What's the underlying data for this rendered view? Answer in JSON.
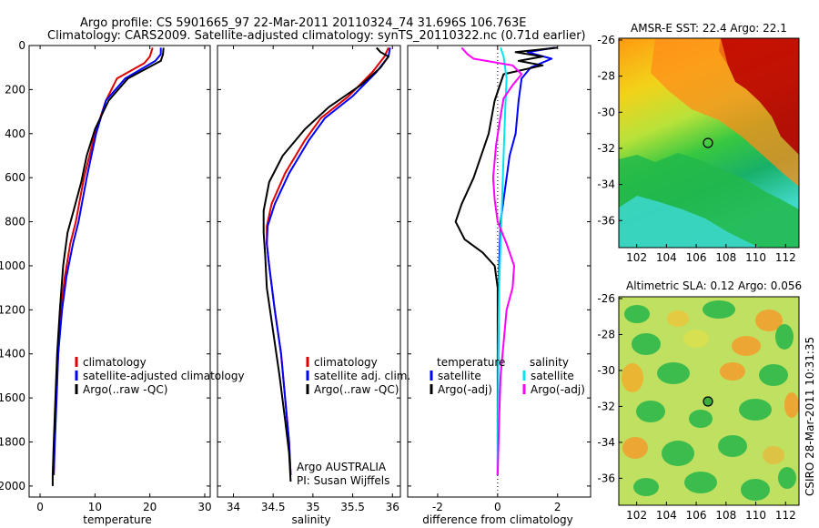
{
  "header": {
    "line1": "Argo profile: CS 5901665_97 22-Mar-2011 20110324_74 31.696S 106.763E",
    "line2": "Climatology: CARS2009. Satellite-adjusted climatology: synTS_20110322.nc (0.71d earlier)"
  },
  "side_text": "CSIRO 28-Mar-2011 10:31:35",
  "colors": {
    "climatology": "#e00000",
    "satellite": "#0000ff",
    "argo": "#000000",
    "sat_salinity": "#00e5ee",
    "argo_salinity": "#ff00ff"
  },
  "chart_data": [
    {
      "type": "line",
      "id": "temperature-profile",
      "xlabel": "temperature",
      "xlim": [
        -2,
        31
      ],
      "ylim": [
        2050,
        0
      ],
      "xticks": [
        0,
        10,
        20,
        30
      ],
      "yticks": [
        0,
        200,
        400,
        600,
        800,
        1000,
        1200,
        1400,
        1600,
        1800,
        2000
      ],
      "legend": [
        "climatology",
        "satellite-adjusted climatology",
        "Argo(..raw -QC)"
      ],
      "series": [
        {
          "name": "climatology",
          "color": "#e00000",
          "points": [
            [
              20.5,
              10
            ],
            [
              20,
              50
            ],
            [
              19,
              80
            ],
            [
              14,
              150
            ],
            [
              12,
              250
            ],
            [
              10,
              400
            ],
            [
              8,
              600
            ],
            [
              6.5,
              800
            ],
            [
              5.5,
              900
            ],
            [
              4.5,
              1050
            ],
            [
              3.8,
              1200
            ],
            [
              3.3,
              1400
            ],
            [
              2.9,
              1600
            ],
            [
              2.6,
              1800
            ],
            [
              2.5,
              1950
            ]
          ]
        },
        {
          "name": "satellite-adjusted climatology",
          "color": "#0000ff",
          "points": [
            [
              22,
              10
            ],
            [
              22,
              40
            ],
            [
              21,
              70
            ],
            [
              15.5,
              150
            ],
            [
              12,
              250
            ],
            [
              10.2,
              400
            ],
            [
              8.5,
              600
            ],
            [
              7,
              800
            ],
            [
              6,
              900
            ],
            [
              4.8,
              1050
            ],
            [
              4,
              1200
            ],
            [
              3.3,
              1400
            ],
            [
              3,
              1600
            ],
            [
              2.7,
              1800
            ],
            [
              2.5,
              1950
            ]
          ]
        },
        {
          "name": "Argo(..raw -QC)",
          "color": "#000000",
          "points": [
            [
              22.5,
              10
            ],
            [
              22.4,
              40
            ],
            [
              22,
              70
            ],
            [
              16,
              150
            ],
            [
              12.5,
              250
            ],
            [
              10,
              380
            ],
            [
              8.5,
              500
            ],
            [
              7.5,
              620
            ],
            [
              6,
              760
            ],
            [
              5,
              850
            ],
            [
              4.2,
              1000
            ],
            [
              3.6,
              1200
            ],
            [
              3.1,
              1400
            ],
            [
              2.8,
              1600
            ],
            [
              2.5,
              1800
            ],
            [
              2.3,
              1950
            ],
            [
              2.3,
              2000
            ]
          ]
        }
      ]
    },
    {
      "type": "line",
      "id": "salinity-profile",
      "xlabel": "salinity",
      "xlim": [
        33.8,
        36.1
      ],
      "ylim": [
        2050,
        0
      ],
      "xticks": [
        34,
        34.5,
        35,
        35.5,
        36
      ],
      "legend": [
        "climatology",
        "satellite adj. clim.",
        "Argo(..raw -QC)"
      ],
      "annotation": [
        "Argo AUSTRALIA",
        "PI: Susan Wijffels"
      ],
      "series": [
        {
          "name": "climatology",
          "color": "#e00000",
          "points": [
            [
              35.95,
              10
            ],
            [
              35.9,
              50
            ],
            [
              35.75,
              120
            ],
            [
              35.45,
              230
            ],
            [
              35.1,
              330
            ],
            [
              34.9,
              430
            ],
            [
              34.65,
              580
            ],
            [
              34.48,
              720
            ],
            [
              34.42,
              820
            ],
            [
              34.42,
              900
            ],
            [
              34.45,
              1000
            ],
            [
              34.52,
              1200
            ],
            [
              34.6,
              1400
            ],
            [
              34.65,
              1600
            ],
            [
              34.7,
              1800
            ],
            [
              34.72,
              1950
            ]
          ]
        },
        {
          "name": "satellite adj. clim.",
          "color": "#0000ff",
          "points": [
            [
              35.97,
              10
            ],
            [
              35.95,
              50
            ],
            [
              35.8,
              120
            ],
            [
              35.5,
              230
            ],
            [
              35.15,
              330
            ],
            [
              34.95,
              430
            ],
            [
              34.7,
              580
            ],
            [
              34.52,
              720
            ],
            [
              34.43,
              820
            ],
            [
              34.42,
              900
            ],
            [
              34.45,
              1000
            ],
            [
              34.52,
              1200
            ],
            [
              34.6,
              1400
            ],
            [
              34.65,
              1600
            ],
            [
              34.7,
              1800
            ],
            [
              34.72,
              1950
            ]
          ]
        },
        {
          "name": "Argo(..raw -QC)",
          "color": "#000000",
          "points": [
            [
              35.8,
              10
            ],
            [
              35.85,
              30
            ],
            [
              35.95,
              50
            ],
            [
              35.85,
              100
            ],
            [
              35.6,
              180
            ],
            [
              35.2,
              280
            ],
            [
              34.9,
              380
            ],
            [
              34.62,
              500
            ],
            [
              34.45,
              620
            ],
            [
              34.38,
              750
            ],
            [
              34.38,
              850
            ],
            [
              34.4,
              950
            ],
            [
              34.42,
              1100
            ],
            [
              34.5,
              1300
            ],
            [
              34.58,
              1500
            ],
            [
              34.65,
              1700
            ],
            [
              34.7,
              1850
            ],
            [
              34.72,
              1980
            ]
          ]
        }
      ]
    },
    {
      "type": "line",
      "id": "difference-profile",
      "xlabel": "difference from climatology",
      "xlim": [
        -3,
        3.1
      ],
      "ylim": [
        2050,
        0
      ],
      "xticks": [
        -2,
        0,
        2
      ],
      "legend_temperature": {
        "heading": "temperature",
        "items": [
          "satellite",
          "Argo(-adj)"
        ]
      },
      "legend_salinity": {
        "heading": "salinity",
        "items": [
          "satellite",
          "Argo(-adj)"
        ]
      },
      "series": [
        {
          "name": "temperature satellite",
          "color": "#0000ff",
          "points": [
            [
              1.9,
              10
            ],
            [
              1.0,
              30
            ],
            [
              1.8,
              60
            ],
            [
              1.1,
              100
            ],
            [
              0.8,
              150
            ],
            [
              0.7,
              250
            ],
            [
              0.6,
              400
            ],
            [
              0.4,
              500
            ],
            [
              0.3,
              600
            ],
            [
              0.2,
              700
            ],
            [
              0.1,
              800
            ],
            [
              0.05,
              1000
            ],
            [
              0.02,
              1500
            ],
            [
              0,
              1950
            ]
          ]
        },
        {
          "name": "temperature Argo(-adj)",
          "color": "#000000",
          "points": [
            [
              2,
              10
            ],
            [
              0.6,
              30
            ],
            [
              1.5,
              50
            ],
            [
              0.7,
              70
            ],
            [
              1.5,
              90
            ],
            [
              0.2,
              130
            ],
            [
              -0.1,
              250
            ],
            [
              -0.3,
              400
            ],
            [
              -0.6,
              520
            ],
            [
              -0.8,
              600
            ],
            [
              -1.2,
              720
            ],
            [
              -1.4,
              800
            ],
            [
              -1.1,
              880
            ],
            [
              -0.5,
              940
            ],
            [
              -0.1,
              1000
            ],
            [
              0,
              1100
            ],
            [
              0,
              1300
            ],
            [
              0,
              1500
            ],
            [
              0,
              1700
            ],
            [
              0,
              1950
            ]
          ]
        },
        {
          "name": "salinity satellite",
          "color": "#00e5ee",
          "points": [
            [
              0.1,
              10
            ],
            [
              0.2,
              50
            ],
            [
              0.3,
              150
            ],
            [
              0.25,
              300
            ],
            [
              0.2,
              500
            ],
            [
              0.15,
              700
            ],
            [
              0.1,
              900
            ],
            [
              0.05,
              1100
            ],
            [
              0.02,
              1400
            ],
            [
              0,
              1950
            ]
          ]
        },
        {
          "name": "salinity Argo(-adj)",
          "color": "#ff00ff",
          "points": [
            [
              -1.2,
              10
            ],
            [
              -1.0,
              40
            ],
            [
              -0.8,
              60
            ],
            [
              0.5,
              90
            ],
            [
              0.8,
              130
            ],
            [
              0.5,
              180
            ],
            [
              0.2,
              240
            ],
            [
              0.1,
              320
            ],
            [
              -0.05,
              450
            ],
            [
              -0.15,
              600
            ],
            [
              -0.1,
              700
            ],
            [
              0,
              800
            ],
            [
              0.3,
              900
            ],
            [
              0.55,
              1000
            ],
            [
              0.5,
              1100
            ],
            [
              0.3,
              1200
            ],
            [
              0.2,
              1350
            ],
            [
              0.1,
              1500
            ],
            [
              0.05,
              1700
            ],
            [
              0,
              1950
            ]
          ]
        }
      ]
    },
    {
      "type": "heatmap",
      "id": "sst-map",
      "title": "AMSR-E SST: 22.4 Argo: 22.1",
      "xlim": [
        100.8,
        112.9
      ],
      "ylim": [
        -37.5,
        -25.9
      ],
      "xticks": [
        102,
        104,
        106,
        108,
        110,
        112
      ],
      "yticks": [
        -26,
        -28,
        -30,
        -32,
        -34,
        -36
      ],
      "marker": [
        106.763,
        -31.696
      ]
    },
    {
      "type": "heatmap",
      "id": "sla-map",
      "title": "Altimetric SLA: 0.12 Argo: 0.056",
      "xlim": [
        100.8,
        112.9
      ],
      "ylim": [
        -37.5,
        -25.9
      ],
      "xticks": [
        102,
        104,
        106,
        108,
        110,
        112
      ],
      "yticks": [
        -26,
        -28,
        -30,
        -32,
        -34,
        -36
      ],
      "marker": [
        106.763,
        -31.696
      ]
    }
  ]
}
